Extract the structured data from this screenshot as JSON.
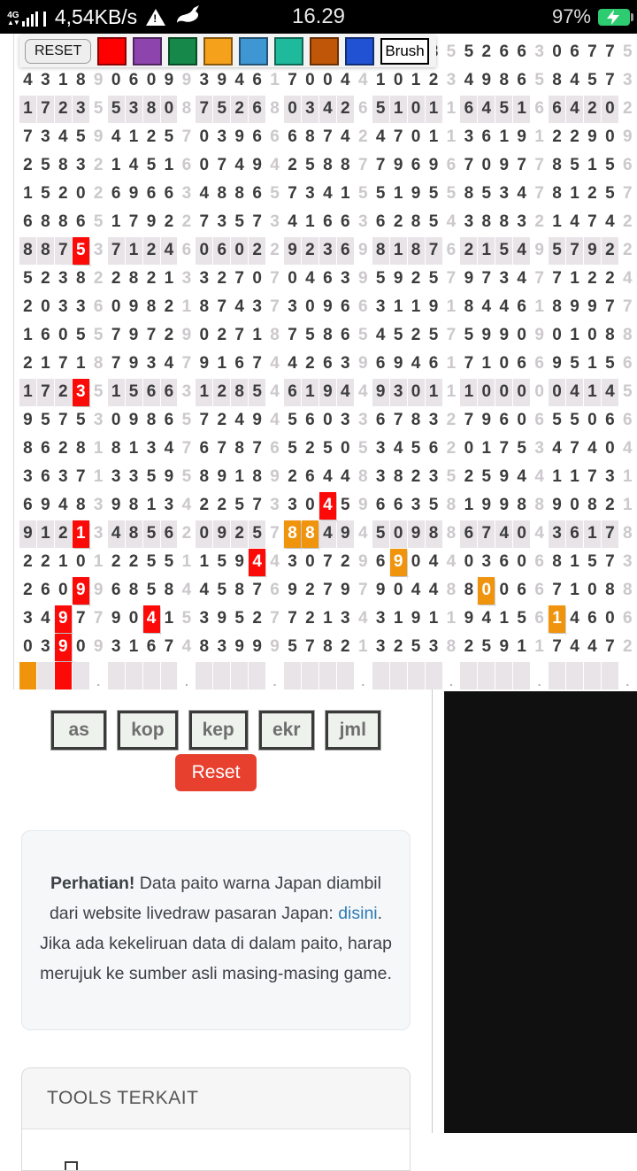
{
  "status_bar": {
    "network": "4G",
    "speed": "4,54KB/s",
    "time": "16.29",
    "battery_percent": "97%",
    "battery_color": "#2ecc71",
    "icons": [
      "signal-4g-icon",
      "warning-icon",
      "rabbit-icon",
      "battery-charging-icon"
    ]
  },
  "toolbar": {
    "reset_label": "RESET",
    "brush_label": "Brush",
    "swatches": [
      {
        "name": "red",
        "color": "#fe0000"
      },
      {
        "name": "purple",
        "color": "#8e44ad"
      },
      {
        "name": "green",
        "color": "#15884a"
      },
      {
        "name": "orange",
        "color": "#f5a11c"
      },
      {
        "name": "blue",
        "color": "#3e96d3"
      },
      {
        "name": "teal",
        "color": "#1fba9c"
      },
      {
        "name": "brown",
        "color": "#c05708"
      },
      {
        "name": "dark-blue",
        "color": "#2052d3"
      }
    ]
  },
  "paito": {
    "columns": 35,
    "rows": [
      "                       855266306775",
      "43189060993946170044101234986584573",
      "17235538087526803426510116451664202",
      "73459412570396668742470113619122909",
      "25832145160749425887796967097785156",
      "15202696634886573415519558534781257",
      "68865179227357341663628543883214742",
      "88753712460602292369818762154957922",
      "52382282133270704639592579734771224",
      "20336098218743730966311918446189977",
      "16055797290271875865452575990901088",
      "21718793479167442639694617106695156",
      "17235156631285461944930111000004145",
      "95753098657249456033678327960655066",
      "86281813476787652505345620175347404",
      "36371335958918926448382352594411731",
      "69483981342257330459663581998890821",
      "91213485620925788494509886740436178",
      "22101225511594430729690440360681573",
      "26099685844587692797904488006671088",
      "34977904153952772134319119415614606",
      "03909316748399957821325382591174472"
    ],
    "shaded_rows": [
      3,
      8,
      13,
      18
    ],
    "highlights": [
      {
        "row": 8,
        "col": 4,
        "color": "red"
      },
      {
        "row": 13,
        "col": 4,
        "color": "red"
      },
      {
        "row": 17,
        "col": 18,
        "color": "red"
      },
      {
        "row": 18,
        "col": 4,
        "color": "red"
      },
      {
        "row": 18,
        "col": 16,
        "color": "orange"
      },
      {
        "row": 18,
        "col": 17,
        "color": "orange"
      },
      {
        "row": 19,
        "col": 14,
        "color": "red"
      },
      {
        "row": 19,
        "col": 22,
        "color": "orange"
      },
      {
        "row": 20,
        "col": 4,
        "color": "red"
      },
      {
        "row": 20,
        "col": 27,
        "color": "orange"
      },
      {
        "row": 21,
        "col": 3,
        "color": "red"
      },
      {
        "row": 21,
        "col": 8,
        "color": "red"
      },
      {
        "row": 21,
        "col": 31,
        "color": "orange"
      },
      {
        "row": 22,
        "col": 3,
        "color": "red"
      }
    ],
    "footer": {
      "orange_col": 1,
      "red_col": 3,
      "dot_cols": [
        5,
        10,
        15,
        20,
        25,
        30,
        35
      ],
      "dot_char": "."
    },
    "colors": {
      "hl_red": "#fb0a07",
      "hl_orange": "#f0940e",
      "shade": "#e8e4e8",
      "digit": "#3c3c3c",
      "gray_digit": "#ccc8cc"
    }
  },
  "controls": {
    "buttons": [
      "as",
      "kop",
      "kep",
      "ekr",
      "jml"
    ],
    "reset_label": "Reset"
  },
  "notice": {
    "segments": [
      {
        "text": "Perhatian!",
        "style": "bold"
      },
      {
        "text": " Data paito warna Japan diambil dari website livedraw pasaran Japan: ",
        "style": "plain"
      },
      {
        "text": "disini",
        "style": "link"
      },
      {
        "text": ". Jika ada kekeliruan data di dalam paito, harap merujuk ke sumber asli masing-masing game.",
        "style": "plain"
      }
    ]
  },
  "tools": {
    "title": "TOOLS TERKAIT"
  }
}
